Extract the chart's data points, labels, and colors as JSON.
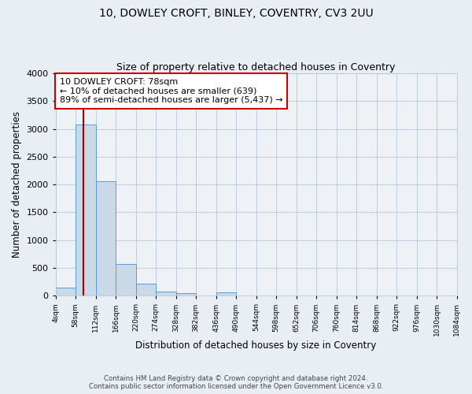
{
  "title_line1": "10, DOWLEY CROFT, BINLEY, COVENTRY, CV3 2UU",
  "title_line2": "Size of property relative to detached houses in Coventry",
  "xlabel": "Distribution of detached houses by size in Coventry",
  "ylabel": "Number of detached properties",
  "bin_edges": [
    4,
    58,
    112,
    166,
    220,
    274,
    328,
    382,
    436,
    490,
    544,
    598,
    652,
    706,
    760,
    814,
    868,
    922,
    976,
    1030,
    1084
  ],
  "bin_labels": [
    "4sqm",
    "58sqm",
    "112sqm",
    "166sqm",
    "220sqm",
    "274sqm",
    "328sqm",
    "382sqm",
    "436sqm",
    "490sqm",
    "544sqm",
    "598sqm",
    "652sqm",
    "706sqm",
    "760sqm",
    "814sqm",
    "868sqm",
    "922sqm",
    "976sqm",
    "1030sqm",
    "1084sqm"
  ],
  "bar_heights": [
    150,
    3075,
    2060,
    565,
    210,
    80,
    50,
    0,
    55,
    0,
    0,
    0,
    0,
    0,
    0,
    0,
    0,
    0,
    0,
    0
  ],
  "bar_color": "#c9d9e8",
  "bar_edge_color": "#5b9bd5",
  "background_color": "#e8eef4",
  "plot_bg_color": "#eef2f7",
  "vline_x": 78,
  "vline_color": "#aa0000",
  "ylim": [
    0,
    4000
  ],
  "yticks": [
    0,
    500,
    1000,
    1500,
    2000,
    2500,
    3000,
    3500,
    4000
  ],
  "annotation_title": "10 DOWLEY CROFT: 78sqm",
  "annotation_line2": "← 10% of detached houses are smaller (639)",
  "annotation_line3": "89% of semi-detached houses are larger (5,437) →",
  "annotation_box_color": "#ffffff",
  "annotation_border_color": "#cc0000",
  "footer_line1": "Contains HM Land Registry data © Crown copyright and database right 2024.",
  "footer_line2": "Contains public sector information licensed under the Open Government Licence v3.0.",
  "grid_color": "#b8c8d8",
  "title_fontsize": 10,
  "subtitle_fontsize": 9,
  "axis_label_fontsize": 8.5
}
